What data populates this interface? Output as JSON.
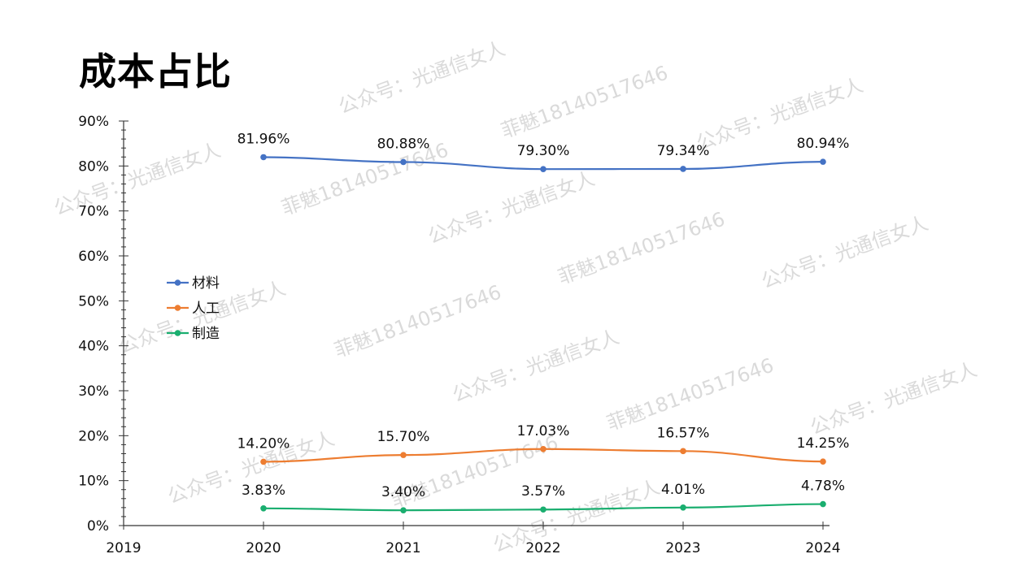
{
  "title": "成本占比",
  "watermarks": [
    "公众号：光通信女人",
    "菲魅18140517646"
  ],
  "chart_data": {
    "type": "line",
    "title": "成本占比",
    "xlabel": "",
    "ylabel": "",
    "x": [
      2019,
      2020,
      2021,
      2022,
      2023,
      2024
    ],
    "x_tick_labels": [
      "2019",
      "2020",
      "2021",
      "2022",
      "2023",
      "2024"
    ],
    "ylim": [
      0,
      90
    ],
    "y_tick_labels": [
      "0%",
      "10%",
      "20%",
      "30%",
      "40%",
      "50%",
      "60%",
      "70%",
      "80%",
      "90%"
    ],
    "grid": false,
    "legend_position": "left-middle",
    "series": [
      {
        "name": "材料",
        "color": "#4472C4",
        "x": [
          2020,
          2021,
          2022,
          2023,
          2024
        ],
        "values": [
          81.96,
          80.88,
          79.3,
          79.34,
          80.94
        ],
        "labels": [
          "81.96%",
          "80.88%",
          "79.30%",
          "79.34%",
          "80.94%"
        ]
      },
      {
        "name": "人工",
        "color": "#ED7D31",
        "x": [
          2020,
          2021,
          2022,
          2023,
          2024
        ],
        "values": [
          14.2,
          15.7,
          17.03,
          16.57,
          14.25
        ],
        "labels": [
          "14.20%",
          "15.70%",
          "17.03%",
          "16.57%",
          "14.25%"
        ]
      },
      {
        "name": "制造",
        "color": "#1AAE6F",
        "x": [
          2020,
          2021,
          2022,
          2023,
          2024
        ],
        "values": [
          3.83,
          3.4,
          3.57,
          4.01,
          4.78
        ],
        "labels": [
          "3.83%",
          "3.40%",
          "3.57%",
          "4.01%",
          "4.78%"
        ]
      }
    ]
  }
}
